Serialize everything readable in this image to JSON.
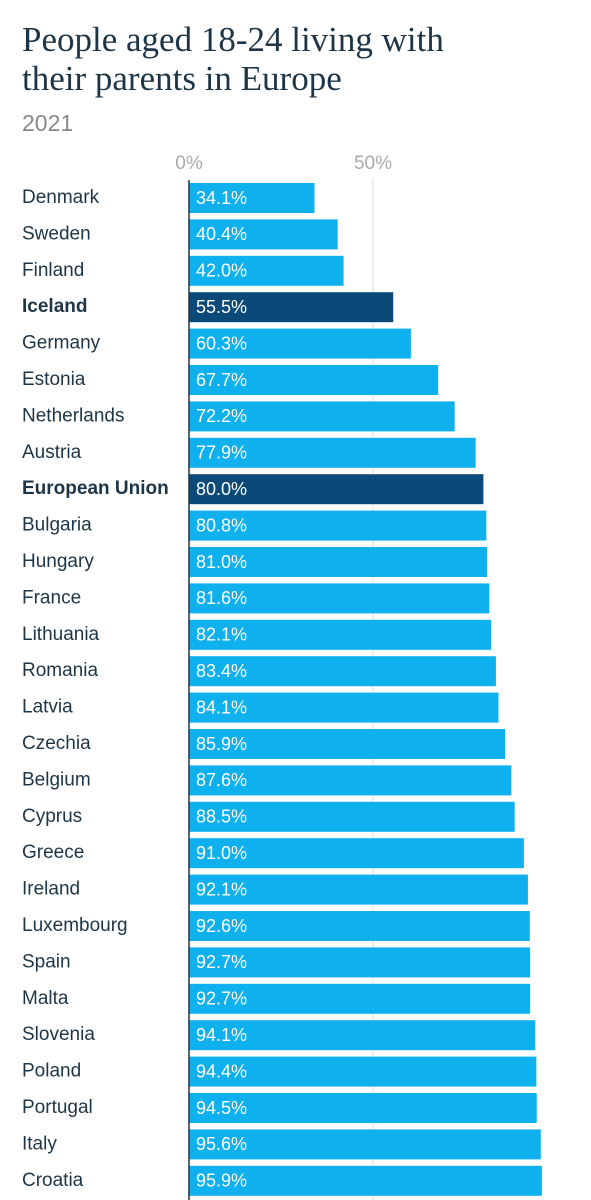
{
  "chart_data": {
    "type": "hbar",
    "title": "People aged 18-24 living with their parents in Europe",
    "subtitle": "2021",
    "categories": [
      "Denmark",
      "Sweden",
      "Finland",
      "Iceland",
      "Germany",
      "Estonia",
      "Netherlands",
      "Austria",
      "European Union",
      "Bulgaria",
      "Hungary",
      "France",
      "Lithuania",
      "Romania",
      "Latvia",
      "Czechia",
      "Belgium",
      "Cyprus",
      "Greece",
      "Ireland",
      "Luxembourg",
      "Spain",
      "Malta",
      "Slovenia",
      "Poland",
      "Portugal",
      "Italy",
      "Croatia"
    ],
    "values": [
      34.1,
      40.4,
      42.0,
      55.5,
      60.3,
      67.7,
      72.2,
      77.9,
      80.0,
      80.8,
      81.0,
      81.6,
      82.1,
      83.4,
      84.1,
      85.9,
      87.6,
      88.5,
      91.0,
      92.1,
      92.6,
      92.7,
      92.7,
      94.1,
      94.4,
      94.5,
      95.6,
      95.9
    ],
    "value_labels": [
      "34.1%",
      "40.4%",
      "42.0%",
      "55.5%",
      "60.3%",
      "67.7%",
      "72.2%",
      "77.9%",
      "80.0%",
      "80.8%",
      "81.0%",
      "81.6%",
      "82.1%",
      "83.4%",
      "84.1%",
      "85.9%",
      "87.6%",
      "88.5%",
      "91.0%",
      "92.1%",
      "92.6%",
      "92.7%",
      "92.7%",
      "94.1%",
      "94.4%",
      "94.5%",
      "95.6%",
      "95.9%"
    ],
    "color": "#0fb0ee",
    "colors": [
      "#0fb0ee",
      "#0fb0ee",
      "#0fb0ee",
      "#0b4a78",
      "#0fb0ee",
      "#0fb0ee",
      "#0fb0ee",
      "#0fb0ee",
      "#0b4a78",
      "#0fb0ee",
      "#0fb0ee",
      "#0fb0ee",
      "#0fb0ee",
      "#0fb0ee",
      "#0fb0ee",
      "#0fb0ee",
      "#0fb0ee",
      "#0fb0ee",
      "#0fb0ee",
      "#0fb0ee",
      "#0fb0ee",
      "#0fb0ee",
      "#0fb0ee",
      "#0fb0ee",
      "#0fb0ee",
      "#0fb0ee",
      "#0fb0ee",
      "#0fb0ee"
    ],
    "xlim": [
      0,
      100
    ],
    "xticks": [
      {
        "value": 0,
        "label": "0%"
      },
      {
        "value": 50,
        "label": "50%"
      }
    ],
    "grid": true
  }
}
